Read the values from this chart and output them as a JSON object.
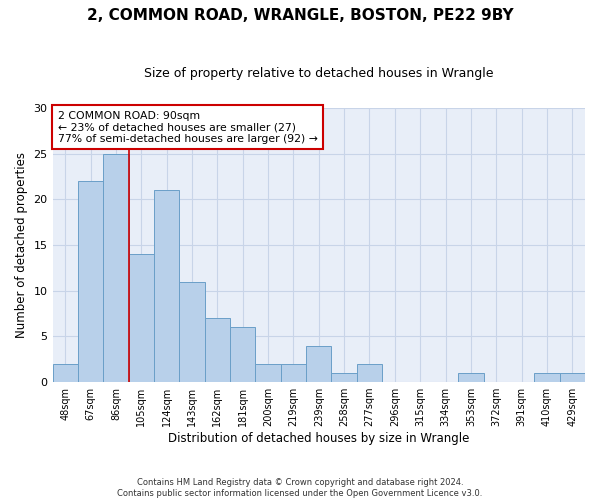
{
  "title1": "2, COMMON ROAD, WRANGLE, BOSTON, PE22 9BY",
  "title2": "Size of property relative to detached houses in Wrangle",
  "xlabel": "Distribution of detached houses by size in Wrangle",
  "ylabel": "Number of detached properties",
  "categories": [
    "48sqm",
    "67sqm",
    "86sqm",
    "105sqm",
    "124sqm",
    "143sqm",
    "162sqm",
    "181sqm",
    "200sqm",
    "219sqm",
    "239sqm",
    "258sqm",
    "277sqm",
    "296sqm",
    "315sqm",
    "334sqm",
    "353sqm",
    "372sqm",
    "391sqm",
    "410sqm",
    "429sqm"
  ],
  "values": [
    2,
    22,
    25,
    14,
    21,
    11,
    7,
    6,
    2,
    2,
    4,
    1,
    2,
    0,
    0,
    0,
    1,
    0,
    0,
    1,
    1
  ],
  "bar_color": "#b8d0ea",
  "bar_edge_color": "#6a9fc8",
  "bar_width": 1.0,
  "vline_x": 2.5,
  "vline_color": "#cc0000",
  "annotation_title": "2 COMMON ROAD: 90sqm",
  "annotation_line2": "← 23% of detached houses are smaller (27)",
  "annotation_line3": "77% of semi-detached houses are larger (92) →",
  "annotation_box_color": "#cc0000",
  "ylim": [
    0,
    30
  ],
  "yticks": [
    0,
    5,
    10,
    15,
    20,
    25,
    30
  ],
  "grid_color": "#c8d4e8",
  "bg_color": "#e8eef8",
  "footer1": "Contains HM Land Registry data © Crown copyright and database right 2024.",
  "footer2": "Contains public sector information licensed under the Open Government Licence v3.0."
}
